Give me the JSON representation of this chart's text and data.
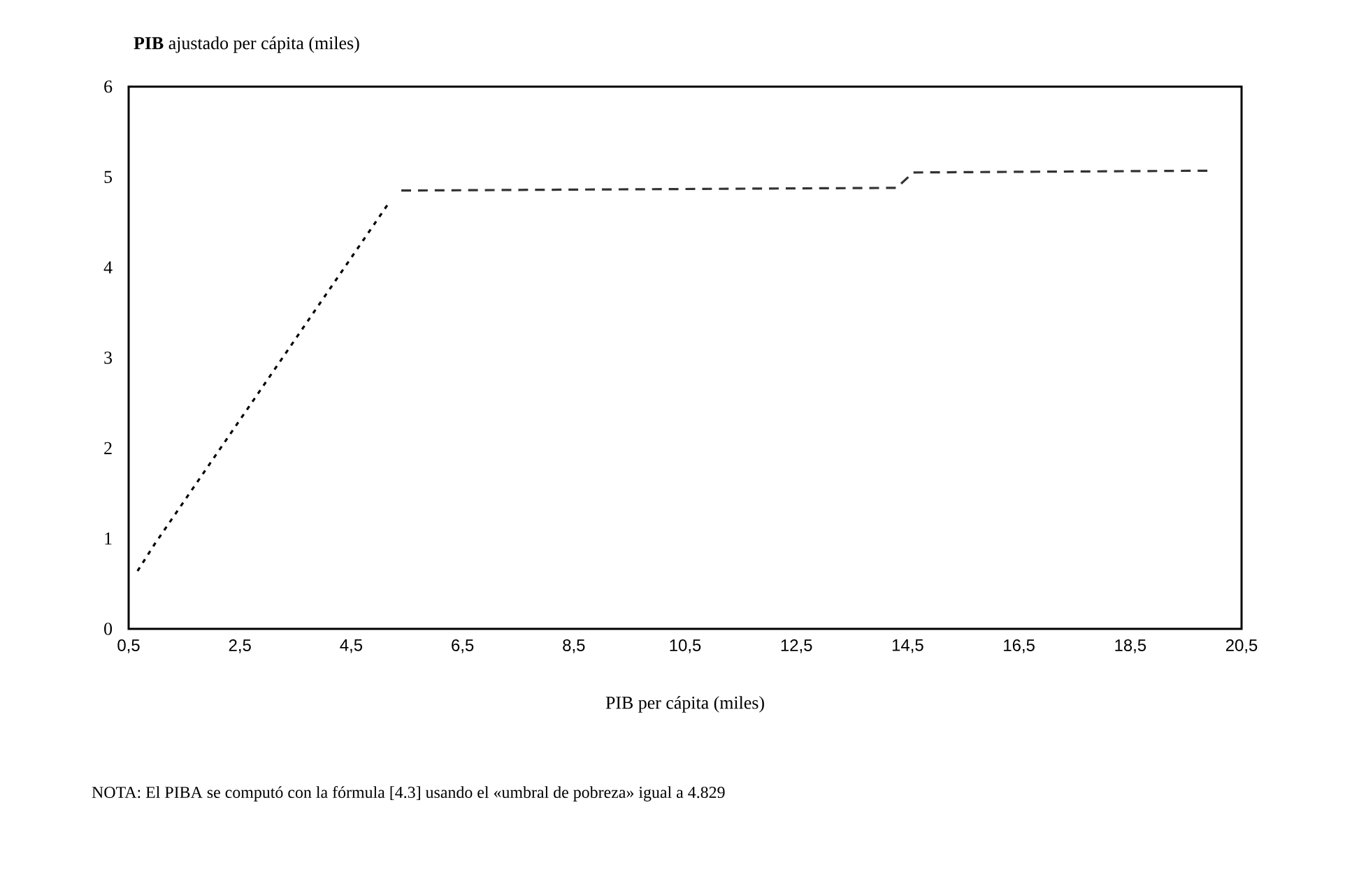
{
  "chart_data": {
    "type": "line",
    "ylabel": "**PIB** ajustado per cápita (miles)",
    "xlabel": "PIB per cápita (miles)",
    "annotations": [
      "NOTA: El PIBA se computó con la fórmula [4.3] usando el «umbral de pobreza» igual a 4.829"
    ],
    "xlim": [
      0.5,
      20.5
    ],
    "ylim": [
      0,
      6
    ],
    "xticks": [
      {
        "value": 0.5,
        "label": "0,5"
      },
      {
        "value": 2.5,
        "label": "2,5"
      },
      {
        "value": 4.5,
        "label": "4,5"
      },
      {
        "value": 6.5,
        "label": "6,5"
      },
      {
        "value": 8.5,
        "label": "8,5"
      },
      {
        "value": 10.5,
        "label": "10,5"
      },
      {
        "value": 12.5,
        "label": "12,5"
      },
      {
        "value": 14.5,
        "label": "14,5"
      },
      {
        "value": 16.5,
        "label": "16,5"
      },
      {
        "value": 18.5,
        "label": "18,5"
      },
      {
        "value": 20.5,
        "label": "20,5"
      }
    ],
    "yticks": [
      0,
      1,
      2,
      3,
      4,
      5,
      6
    ],
    "series": [
      {
        "color": "#000000",
        "line_style": "dotted",
        "x": [
          0.66,
          0.97,
          5.15
        ],
        "values": [
          0.64,
          0.94,
          4.69
        ]
      },
      {
        "color": "#333333",
        "line_style": "dashed",
        "x": [
          5.4,
          14.3,
          14.6,
          19.95
        ],
        "values": [
          4.85,
          4.88,
          5.05,
          5.07
        ]
      }
    ]
  }
}
